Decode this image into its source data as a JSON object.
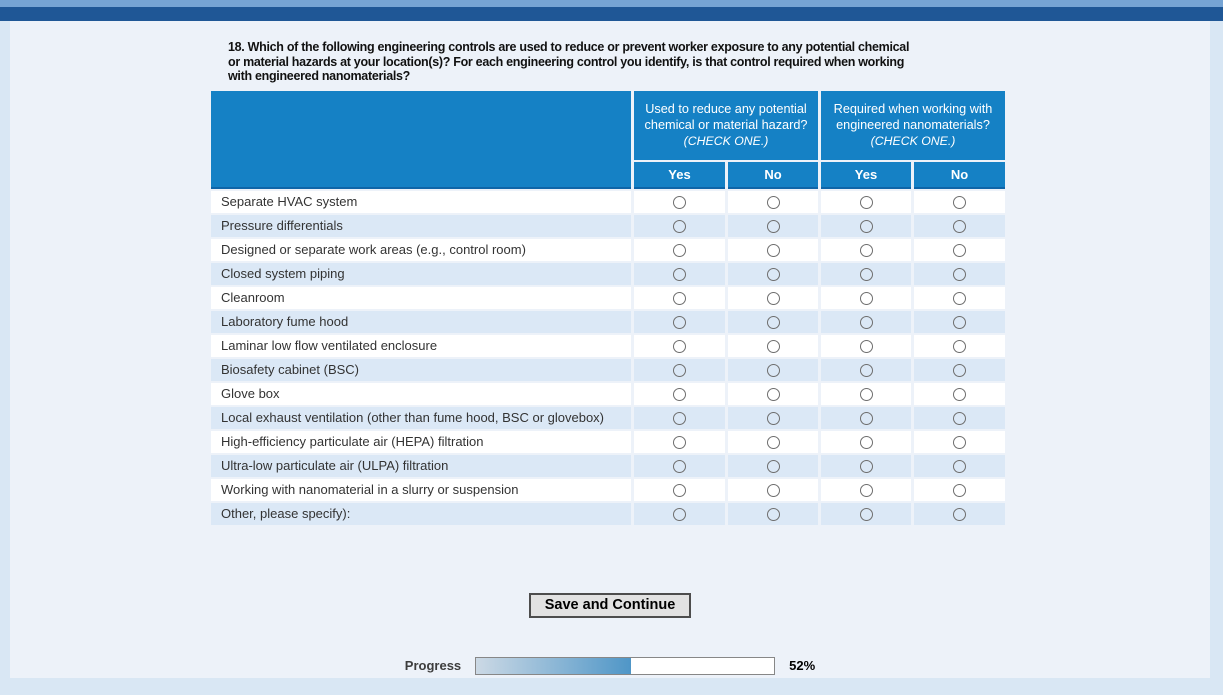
{
  "question": {
    "text": "18. Which of the following engineering controls are used to reduce or prevent worker exposure to any potential chemical\nor material hazards at your location(s)? For each engineering control you identify, is that control required when working\nwith engineered nanomaterials?"
  },
  "table": {
    "groups": [
      {
        "title": "Used to reduce any potential chemical or material hazard?",
        "instruction": "(CHECK ONE.)"
      },
      {
        "title": "Required when working with engineered nanomaterials?",
        "instruction": "(CHECK ONE.)"
      }
    ],
    "choice_headers": [
      "Yes",
      "No",
      "Yes",
      "No"
    ],
    "rows": [
      "Separate HVAC system",
      "Pressure differentials",
      "Designed or separate work areas (e.g., control room)",
      "Closed system piping",
      "Cleanroom",
      "Laboratory fume hood",
      "Laminar low flow ventilated enclosure",
      "Biosafety cabinet (BSC)",
      "Glove box",
      "Local exhaust ventilation (other than fume hood, BSC or glovebox)",
      "High-efficiency particulate air (HEPA) filtration",
      "Ultra-low particulate air (ULPA) filtration",
      "Working with nanomaterial in a slurry or suspension",
      "Other, please specify):"
    ],
    "radio_columns": [
      "hazard-yes",
      "hazard-no",
      "nano-yes",
      "nano-no"
    ],
    "selections": []
  },
  "buttons": {
    "save_and_continue": "Save and Continue"
  },
  "progress": {
    "label": "Progress",
    "percent": 52,
    "percent_label": "52%"
  },
  "colors": {
    "header_blue": "#1581c5",
    "header_border_blue": "#0f65a8",
    "row_stripe": "#dbe8f6",
    "page_background": "#d9e7f4",
    "content_background": "#edf2f9",
    "top_bar_light": "#76a4d4",
    "top_bar_dark": "#1f5796",
    "progress_fill_start": "#ccd9e5",
    "progress_fill_end": "#4f96c7"
  }
}
